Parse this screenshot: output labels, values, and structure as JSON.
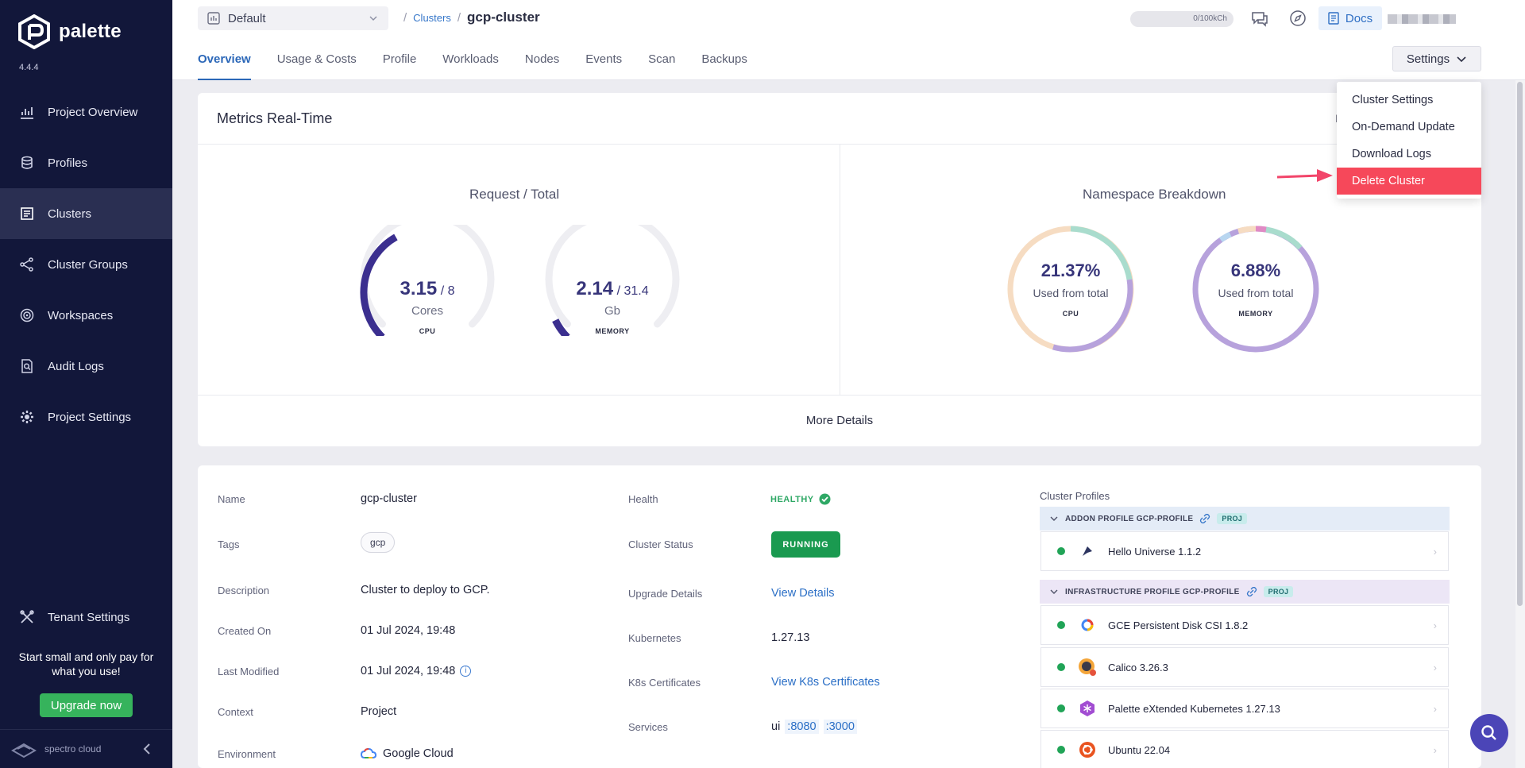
{
  "sidebar": {
    "brand": "palette",
    "version": "4.4.4",
    "items": [
      {
        "label": "Project Overview",
        "icon": "chart-icon"
      },
      {
        "label": "Profiles",
        "icon": "stack-icon"
      },
      {
        "label": "Clusters",
        "icon": "clusters-icon",
        "active": true
      },
      {
        "label": "Cluster Groups",
        "icon": "network-icon"
      },
      {
        "label": "Workspaces",
        "icon": "target-icon"
      },
      {
        "label": "Audit Logs",
        "icon": "audit-icon"
      },
      {
        "label": "Project Settings",
        "icon": "gear-icon"
      }
    ],
    "tenant": "Tenant Settings",
    "promo": "Start small and only pay for what you use!",
    "upgrade": "Upgrade now",
    "footer_logo": "spectro cloud"
  },
  "header": {
    "project": "Default",
    "breadcrumb_link": "Clusters",
    "breadcrumb_current": "gcp-cluster",
    "usage": "0/100kCh",
    "docs": "Docs",
    "tabs": [
      "Overview",
      "Usage & Costs",
      "Profile",
      "Workloads",
      "Nodes",
      "Events",
      "Scan",
      "Backups"
    ],
    "active_tab": "Overview",
    "settings": "Settings"
  },
  "settings_menu": [
    "Cluster Settings",
    "On-Demand Update",
    "Download Logs",
    "Delete Cluster"
  ],
  "metrics": {
    "title": "Metrics Real-Time",
    "cut_label": "I",
    "request_title": "Request / Total",
    "cpu": {
      "value": "3.15",
      "total": "/ 8",
      "unit": "Cores",
      "caption": "CPU",
      "fraction": 0.39
    },
    "memory": {
      "value": "2.14",
      "total": "/ 31.4",
      "unit": "Gb",
      "caption": "MEMORY",
      "fraction": 0.07
    },
    "namespace_title": "Namespace Breakdown",
    "ns_cpu": {
      "pct": "21.37%",
      "sub": "Used from total",
      "caption": "CPU"
    },
    "ns_mem": {
      "pct": "6.88%",
      "sub": "Used from total",
      "caption": "MEMORY"
    },
    "more": "More Details"
  },
  "details": {
    "name_label": "Name",
    "name": "gcp-cluster",
    "tags_label": "Tags",
    "tag": "gcp",
    "desc_label": "Description",
    "desc": "Cluster to deploy to GCP.",
    "created_label": "Created On",
    "created": "01 Jul 2024, 19:48",
    "modified_label": "Last Modified",
    "modified": "01 Jul 2024, 19:48",
    "context_label": "Context",
    "context": "Project",
    "env_label": "Environment",
    "env": "Google Cloud",
    "health_label": "Health",
    "health": "HEALTHY",
    "status_label": "Cluster Status",
    "status": "RUNNING",
    "upgrade_label": "Upgrade Details",
    "upgrade": "View Details",
    "k8s_label": "Kubernetes",
    "k8s": "1.27.13",
    "certs_label": "K8s Certificates",
    "certs": "View K8s Certificates",
    "services_label": "Services",
    "service_name": "ui",
    "port1": ":8080",
    "port2": ":3000"
  },
  "cluster_profiles": {
    "title": "Cluster Profiles",
    "addon_group": "ADDON PROFILE GCP-PROFILE",
    "infra_group": "INFRASTRUCTURE PROFILE GCP-PROFILE",
    "badge": "PROJ",
    "addon_items": [
      "Hello Universe 1.1.2"
    ],
    "infra_items": [
      "GCE Persistent Disk CSI 1.8.2",
      "Calico 3.26.3",
      "Palette eXtended Kubernetes 1.27.13",
      "Ubuntu 22.04"
    ]
  },
  "colors": {
    "sidebar": "#12173a",
    "accent": "#2b67b8",
    "danger": "#f6485a",
    "running": "#1a9a50",
    "gauge": "#3b2f8f"
  }
}
